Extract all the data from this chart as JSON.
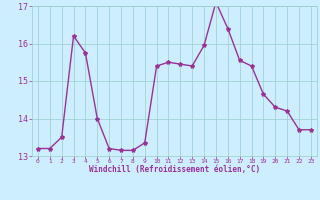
{
  "x": [
    0,
    1,
    2,
    3,
    4,
    5,
    6,
    7,
    8,
    9,
    10,
    11,
    12,
    13,
    14,
    15,
    16,
    17,
    18,
    19,
    20,
    21,
    22,
    23
  ],
  "y": [
    13.2,
    13.2,
    13.5,
    16.2,
    15.75,
    14.0,
    13.2,
    13.15,
    13.15,
    13.35,
    15.4,
    15.5,
    15.45,
    15.4,
    15.95,
    17.1,
    16.4,
    15.55,
    15.4,
    14.65,
    14.3,
    14.2,
    13.7,
    13.7
  ],
  "xlim": [
    -0.5,
    23.5
  ],
  "ylim": [
    13,
    17
  ],
  "yticks": [
    13,
    14,
    15,
    16,
    17
  ],
  "xticks": [
    0,
    1,
    2,
    3,
    4,
    5,
    6,
    7,
    8,
    9,
    10,
    11,
    12,
    13,
    14,
    15,
    16,
    17,
    18,
    19,
    20,
    21,
    22,
    23
  ],
  "xlabel": "Windchill (Refroidissement éolien,°C)",
  "line_color": "#993399",
  "marker": "*",
  "bg_color": "#cceeff",
  "grid_color": "#99cccc",
  "xlabel_color": "#993399",
  "tick_color": "#993399",
  "marker_size": 3,
  "linewidth": 1.0
}
